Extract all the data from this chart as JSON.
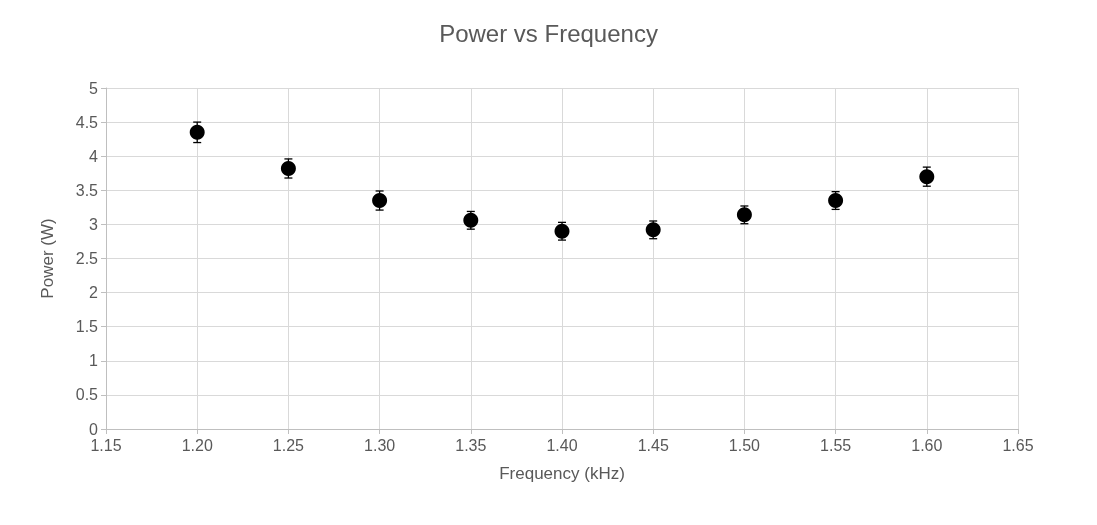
{
  "chart_data": {
    "type": "scatter",
    "title": "Power vs Frequency",
    "xlabel": "Frequency (kHz)",
    "ylabel": "Power (W)",
    "x": [
      1.2,
      1.25,
      1.3,
      1.35,
      1.4,
      1.45,
      1.5,
      1.55,
      1.6
    ],
    "values": [
      4.35,
      3.82,
      3.35,
      3.06,
      2.9,
      2.92,
      3.14,
      3.35,
      3.7
    ],
    "errors": [
      0.15,
      0.14,
      0.14,
      0.13,
      0.13,
      0.13,
      0.13,
      0.13,
      0.14
    ],
    "color": "#000000",
    "marker": "circle",
    "xlim": [
      1.15,
      1.65
    ],
    "xticks": [
      {
        "value": 1.15,
        "label": "1.15"
      },
      {
        "value": 1.2,
        "label": "1.20"
      },
      {
        "value": 1.25,
        "label": "1.25"
      },
      {
        "value": 1.3,
        "label": "1.30"
      },
      {
        "value": 1.35,
        "label": "1.35"
      },
      {
        "value": 1.4,
        "label": "1.40"
      },
      {
        "value": 1.45,
        "label": "1.45"
      },
      {
        "value": 1.5,
        "label": "1.50"
      },
      {
        "value": 1.55,
        "label": "1.55"
      },
      {
        "value": 1.6,
        "label": "1.60"
      },
      {
        "value": 1.65,
        "label": "1.65"
      }
    ],
    "ylim": [
      0,
      5
    ],
    "yticks": [
      0,
      0.5,
      1,
      1.5,
      2,
      2.5,
      3,
      3.5,
      4,
      4.5,
      5
    ],
    "grid": true
  }
}
